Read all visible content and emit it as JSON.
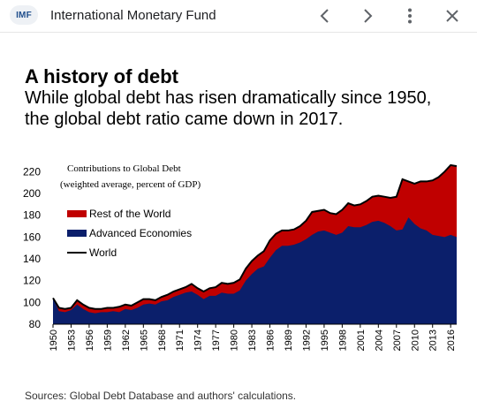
{
  "header": {
    "logo_text": "IMF",
    "title": "International Monetary Fund",
    "icons": [
      "chevron-left-icon",
      "chevron-right-icon",
      "more-vert-icon",
      "close-icon"
    ]
  },
  "article": {
    "headline": "A history of debt",
    "subheadline": "While global debt has risen dramatically since 1950, the global debt ratio came down in 2017."
  },
  "chart_data": {
    "type": "area",
    "title": "Contributions to Global Debt",
    "subtitle": "(weighted average, percent of GDP)",
    "xlabel": "",
    "ylabel": "",
    "ylim": [
      80,
      230
    ],
    "yticks": [
      80,
      100,
      120,
      140,
      160,
      180,
      200,
      220
    ],
    "xticks": [
      1950,
      1953,
      1956,
      1959,
      1962,
      1965,
      1968,
      1971,
      1974,
      1977,
      1980,
      1983,
      1986,
      1989,
      1992,
      1995,
      1998,
      2001,
      2004,
      2007,
      2010,
      2013,
      2016
    ],
    "grid": false,
    "legend_position": "top-left",
    "x": [
      1950,
      1951,
      1952,
      1953,
      1954,
      1955,
      1956,
      1957,
      1958,
      1959,
      1960,
      1961,
      1962,
      1963,
      1964,
      1965,
      1966,
      1967,
      1968,
      1969,
      1970,
      1971,
      1972,
      1973,
      1974,
      1975,
      1976,
      1977,
      1978,
      1979,
      1980,
      1981,
      1982,
      1983,
      1984,
      1985,
      1986,
      1987,
      1988,
      1989,
      1990,
      1991,
      1992,
      1993,
      1994,
      1995,
      1996,
      1997,
      1998,
      1999,
      2000,
      2001,
      2002,
      2003,
      2004,
      2005,
      2006,
      2007,
      2008,
      2009,
      2010,
      2011,
      2012,
      2013,
      2014,
      2015,
      2016,
      2017
    ],
    "series": [
      {
        "name": "Advanced Economies",
        "color": "#0b1f6b",
        "type": "area",
        "values": [
          104,
          92,
          91,
          93,
          98,
          94,
          91,
          90,
          91,
          91,
          92,
          91,
          94,
          93,
          95,
          98,
          99,
          98,
          101,
          102,
          105,
          107,
          109,
          110,
          107,
          103,
          106,
          106,
          109,
          108,
          108,
          111,
          120,
          126,
          131,
          133,
          141,
          148,
          152,
          152,
          153,
          155,
          158,
          162,
          165,
          166,
          164,
          162,
          164,
          170,
          169,
          169,
          171,
          174,
          175,
          173,
          170,
          166,
          167,
          178,
          172,
          168,
          166,
          162,
          161,
          160,
          162,
          160
        ]
      },
      {
        "name": "Rest of the World",
        "color": "#c00000",
        "type": "area",
        "values": [
          104,
          95,
          94,
          95,
          102,
          98,
          95,
          94,
          94,
          95,
          95,
          96,
          98,
          97,
          100,
          103,
          103,
          102,
          105,
          107,
          110,
          112,
          114,
          117,
          113,
          110,
          113,
          114,
          118,
          117,
          118,
          121,
          131,
          138,
          143,
          147,
          157,
          163,
          166,
          166,
          167,
          170,
          175,
          183,
          184,
          185,
          182,
          181,
          185,
          191,
          189,
          190,
          193,
          197,
          198,
          197,
          196,
          197,
          213,
          211,
          209,
          211,
          211,
          212,
          215,
          220,
          226,
          225
        ]
      },
      {
        "name": "World",
        "color": "#000000",
        "type": "line",
        "values": [
          104,
          95,
          94,
          95,
          102,
          98,
          95,
          94,
          94,
          95,
          95,
          96,
          98,
          97,
          100,
          103,
          103,
          102,
          105,
          107,
          110,
          112,
          114,
          117,
          113,
          110,
          113,
          114,
          118,
          117,
          118,
          121,
          131,
          138,
          143,
          147,
          157,
          163,
          166,
          166,
          167,
          170,
          175,
          183,
          184,
          185,
          182,
          181,
          185,
          191,
          189,
          190,
          193,
          197,
          198,
          197,
          196,
          197,
          213,
          211,
          209,
          211,
          211,
          212,
          215,
          220,
          226,
          225
        ]
      }
    ]
  },
  "footer": {
    "source": "Sources: Global Debt Database and authors' calculations."
  }
}
